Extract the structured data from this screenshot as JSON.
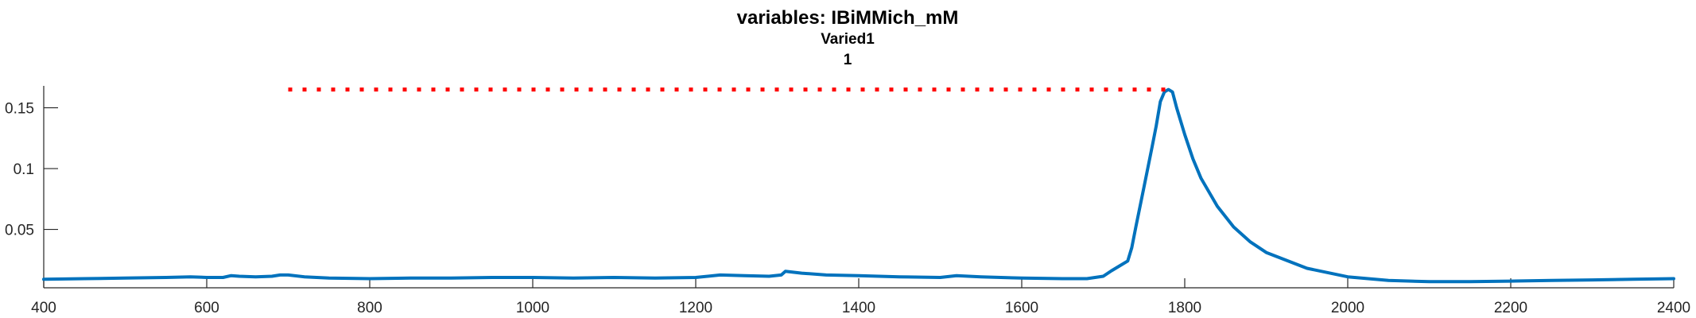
{
  "chart_data": {
    "type": "line",
    "title": "variables: IBiMMich_mM",
    "subtitle_lines": [
      "Varied1",
      "1"
    ],
    "xlabel": "",
    "ylabel": "",
    "xlim": [
      400,
      2400
    ],
    "ylim": [
      0.002,
      0.168
    ],
    "grid": false,
    "x_ticks": [
      400,
      600,
      800,
      1000,
      1200,
      1400,
      1600,
      1800,
      2000,
      2200,
      2400
    ],
    "y_ticks": [
      0.05,
      0.1,
      0.15
    ],
    "x_tick_labels": [
      "400",
      "600",
      "800",
      "1000",
      "1200",
      "1400",
      "1600",
      "1800",
      "2000",
      "2200",
      "2400"
    ],
    "y_tick_labels": [
      "0.05",
      "0.1",
      "0.15"
    ],
    "colors": {
      "series": "#0072BD",
      "reference": "#ff0000"
    },
    "series": [
      {
        "style": "solid",
        "x": [
          400,
          450,
          500,
          550,
          580,
          600,
          620,
          630,
          640,
          660,
          680,
          690,
          700,
          720,
          750,
          800,
          850,
          900,
          950,
          1000,
          1050,
          1100,
          1150,
          1200,
          1230,
          1260,
          1290,
          1305,
          1310,
          1330,
          1360,
          1400,
          1450,
          1500,
          1520,
          1550,
          1600,
          1650,
          1680,
          1700,
          1710,
          1720,
          1730,
          1735,
          1740,
          1750,
          1760,
          1765,
          1770,
          1775,
          1780,
          1785,
          1790,
          1800,
          1810,
          1820,
          1840,
          1860,
          1880,
          1900,
          1950,
          2000,
          2050,
          2100,
          2150,
          2200,
          2250,
          2300,
          2350,
          2400
        ],
        "y": [
          0.009,
          0.0095,
          0.01,
          0.0105,
          0.011,
          0.0105,
          0.0105,
          0.012,
          0.0115,
          0.011,
          0.0115,
          0.0125,
          0.0125,
          0.011,
          0.01,
          0.0095,
          0.01,
          0.01,
          0.0105,
          0.0105,
          0.01,
          0.0105,
          0.01,
          0.0105,
          0.0125,
          0.012,
          0.0115,
          0.0125,
          0.0155,
          0.014,
          0.0125,
          0.012,
          0.011,
          0.0105,
          0.012,
          0.011,
          0.01,
          0.0095,
          0.0095,
          0.0115,
          0.016,
          0.02,
          0.024,
          0.035,
          0.052,
          0.085,
          0.118,
          0.135,
          0.155,
          0.163,
          0.165,
          0.163,
          0.15,
          0.128,
          0.108,
          0.092,
          0.069,
          0.052,
          0.04,
          0.031,
          0.018,
          0.011,
          0.008,
          0.007,
          0.007,
          0.0075,
          0.008,
          0.0085,
          0.009,
          0.0095
        ]
      },
      {
        "style": "dotted",
        "x": [
          700,
          1780
        ],
        "y": [
          0.165,
          0.165
        ]
      }
    ]
  }
}
